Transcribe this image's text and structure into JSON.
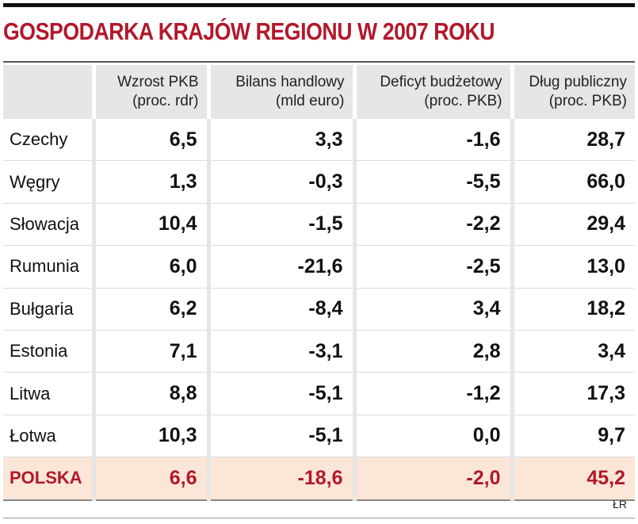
{
  "title": "GOSPODARKA KRAJÓW REGIONU W 2007 ROKU",
  "source": "ŁR",
  "colors": {
    "title": "#b2182b",
    "highlight_bg": "#fbe6d7",
    "header_bg": "#e6e6e6"
  },
  "headers": [
    {
      "line1": "",
      "line2": ""
    },
    {
      "line1": "Wzrost PKB",
      "line2": "(proc. rdr)"
    },
    {
      "line1": "Bilans handlowy",
      "line2": "(mld euro)"
    },
    {
      "line1": "Deficyt budżetowy",
      "line2": "(proc. PKB)"
    },
    {
      "line1": "Dług publiczny",
      "line2": "(proc. PKB)"
    }
  ],
  "rows": [
    {
      "country": "Czechy",
      "values": [
        "6,5",
        "3,3",
        "-1,6",
        "28,7"
      ]
    },
    {
      "country": "Węgry",
      "values": [
        "1,3",
        "-0,3",
        "-5,5",
        "66,0"
      ]
    },
    {
      "country": "Słowacja",
      "values": [
        "10,4",
        "-1,5",
        "-2,2",
        "29,4"
      ]
    },
    {
      "country": "Rumunia",
      "values": [
        "6,0",
        "-21,6",
        "-2,5",
        "13,0"
      ]
    },
    {
      "country": "Bułgaria",
      "values": [
        "6,2",
        "-8,4",
        "3,4",
        "18,2"
      ]
    },
    {
      "country": "Estonia",
      "values": [
        "7,1",
        "-3,1",
        "2,8",
        "3,4"
      ]
    },
    {
      "country": "Litwa",
      "values": [
        "8,8",
        "-5,1",
        "-1,2",
        "17,3"
      ]
    },
    {
      "country": "Łotwa",
      "values": [
        "10,3",
        "-5,1",
        "0,0",
        "9,7"
      ]
    },
    {
      "country": "POLSKA",
      "values": [
        "6,6",
        "-18,6",
        "-2,0",
        "45,2"
      ]
    }
  ],
  "chart_data": {
    "type": "table",
    "title": "GOSPODARKA KRAJÓW REGIONU W 2007 ROKU",
    "columns": [
      "Wzrost PKB (proc. rdr)",
      "Bilans handlowy (mld euro)",
      "Deficyt budżetowy (proc. PKB)",
      "Dług publiczny (proc. PKB)"
    ],
    "categories": [
      "Czechy",
      "Węgry",
      "Słowacja",
      "Rumunia",
      "Bułgaria",
      "Estonia",
      "Litwa",
      "Łotwa",
      "POLSKA"
    ],
    "series": [
      {
        "name": "Wzrost PKB (proc. rdr)",
        "values": [
          6.5,
          1.3,
          10.4,
          6.0,
          6.2,
          7.1,
          8.8,
          10.3,
          6.6
        ]
      },
      {
        "name": "Bilans handlowy (mld euro)",
        "values": [
          3.3,
          -0.3,
          -1.5,
          -21.6,
          -8.4,
          -3.1,
          -5.1,
          -5.1,
          -18.6
        ]
      },
      {
        "name": "Deficyt budżetowy (proc. PKB)",
        "values": [
          -1.6,
          -5.5,
          -2.2,
          -2.5,
          3.4,
          2.8,
          -1.2,
          0.0,
          -2.0
        ]
      },
      {
        "name": "Dług publiczny (proc. PKB)",
        "values": [
          28.7,
          66.0,
          29.4,
          13.0,
          18.2,
          3.4,
          17.3,
          9.7,
          45.2
        ]
      }
    ],
    "highlighted_category": "POLSKA"
  }
}
